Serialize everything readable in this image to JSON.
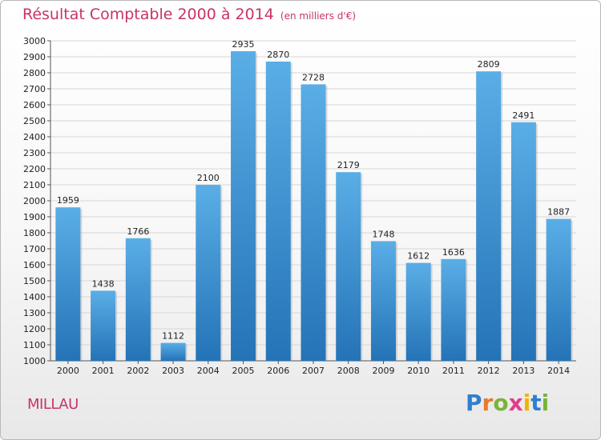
{
  "chart_data": {
    "type": "bar",
    "title": "Résultat Comptable 2000 à 2014",
    "subtitle": "(en milliers d'€)",
    "categories": [
      "2000",
      "2001",
      "2002",
      "2003",
      "2004",
      "2005",
      "2006",
      "2007",
      "2008",
      "2009",
      "2010",
      "2011",
      "2012",
      "2013",
      "2014"
    ],
    "values": [
      1959,
      1438,
      1766,
      1112,
      2100,
      2935,
      2870,
      2728,
      2179,
      1748,
      1612,
      1636,
      2809,
      2491,
      1887
    ],
    "ylim": [
      1000,
      3000
    ],
    "ytick_step": 100,
    "grid": true,
    "bar_color_top": "#5aaee6",
    "bar_color_bottom": "#2473b7"
  },
  "footer": {
    "city": "MILLAU",
    "logo_letters": [
      "P",
      "r",
      "o",
      "x",
      "i",
      "t",
      "i"
    ]
  }
}
